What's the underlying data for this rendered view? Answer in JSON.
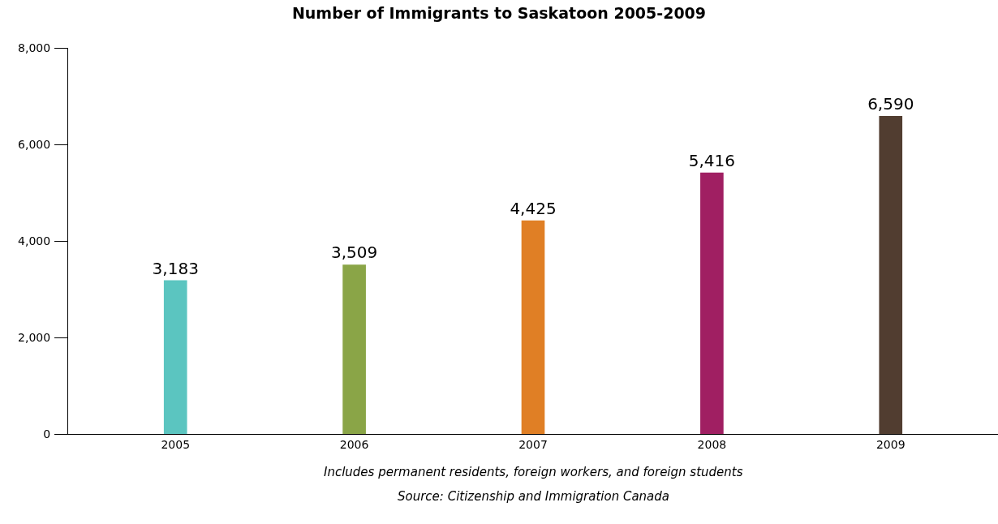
{
  "chart_data": {
    "type": "bar",
    "title": "Number of Immigrants to Saskatoon 2005-2009",
    "categories": [
      "2005",
      "2006",
      "2007",
      "2008",
      "2009"
    ],
    "values": [
      3183,
      3509,
      4425,
      5416,
      6590
    ],
    "colors": [
      "#5bc5c0",
      "#8aa547",
      "#e07f25",
      "#a01f62",
      "#513d30"
    ],
    "ylim": [
      0,
      8000
    ],
    "yticks": [
      {
        "value": 0,
        "label": "0"
      },
      {
        "value": 2000,
        "label": "2,000"
      },
      {
        "value": 4000,
        "label": "4,000"
      },
      {
        "value": 6000,
        "label": "6,000"
      },
      {
        "value": 8000,
        "label": "8,000"
      }
    ],
    "value_labels": [
      "3,183",
      "3,509",
      "4,425",
      "5,416",
      "6,590"
    ],
    "annotations": [
      "Includes permanent residents, foreign workers, and foreign students",
      "Source: Citizenship and Immigration Canada"
    ]
  }
}
